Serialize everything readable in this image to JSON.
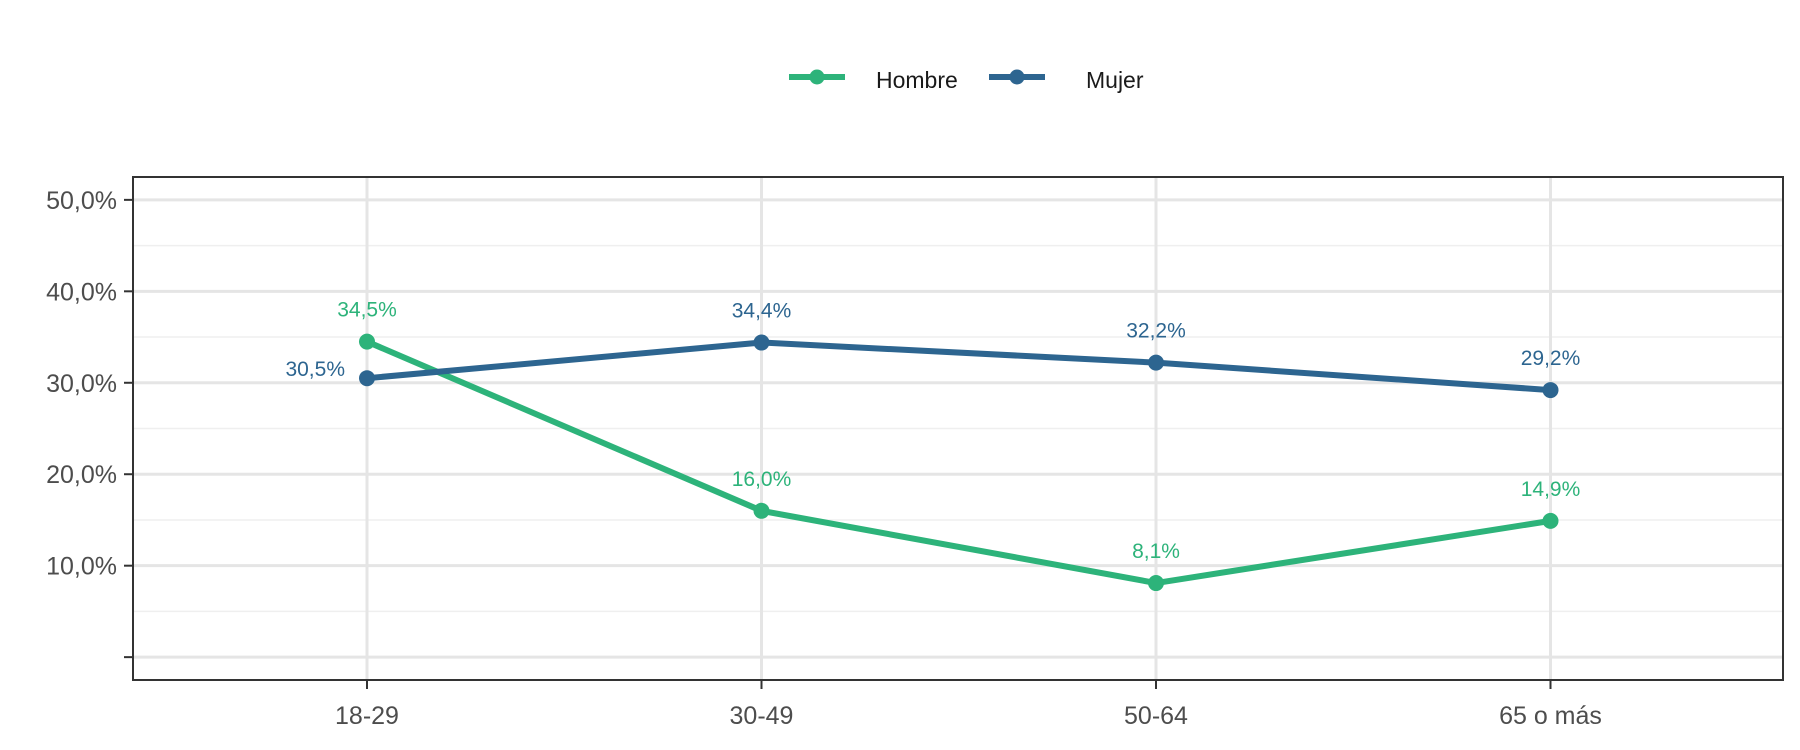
{
  "chart_data": {
    "type": "line",
    "categories": [
      "18-29",
      "30-49",
      "50-64",
      "65 o más"
    ],
    "series": [
      {
        "name": "Hombre",
        "color": "#2db37a",
        "values": [
          34.5,
          16.0,
          8.1,
          14.9
        ],
        "labels": [
          "34,5%",
          "16,0%",
          "8,1%",
          "14,9%"
        ]
      },
      {
        "name": "Mujer",
        "color": "#2d6590",
        "values": [
          30.5,
          34.4,
          32.2,
          29.2
        ],
        "labels": [
          "30,5%",
          "34,4%",
          "32,2%",
          "29,2%"
        ]
      }
    ],
    "y_ticks": [
      10,
      20,
      30,
      40,
      50
    ],
    "y_tick_labels": [
      "10,0%",
      "20,0%",
      "30,0%",
      "40,0%",
      "50,0%"
    ],
    "ylim": [
      -2.5,
      52.5
    ],
    "xlabel": "",
    "ylabel": "",
    "title": "",
    "grid": true,
    "legend_position": "top-center"
  }
}
